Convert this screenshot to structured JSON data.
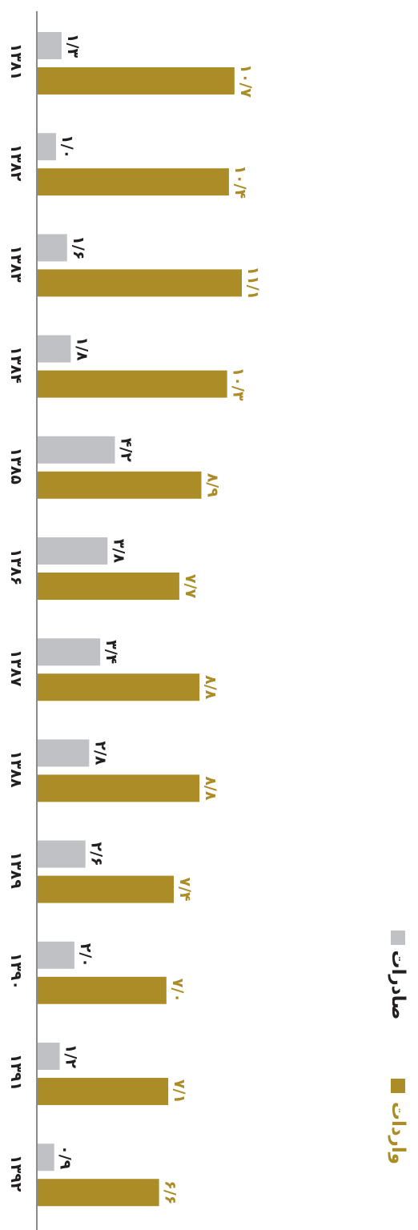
{
  "chart_data": {
    "type": "bar",
    "orientation": "horizontal",
    "categories": [
      "۱۳۸۱",
      "۱۳۸۲",
      "۱۳۸۳",
      "۱۳۸۴",
      "۱۳۸۵",
      "۱۳۸۶",
      "۱۳۸۷",
      "۱۳۸۸",
      "۱۳۸۹",
      "۱۳۹۰",
      "۱۳۹۱",
      "۱۳۹۲"
    ],
    "series": [
      {
        "name": "صادرات",
        "color": "#c0c1c4",
        "label_color": "#231f20",
        "values": [
          1.3,
          1.0,
          1.6,
          1.8,
          4.2,
          3.8,
          3.4,
          2.8,
          2.6,
          2.0,
          1.2,
          0.9
        ],
        "value_labels": [
          "۱/۳",
          "۱/۰",
          "۱/۶",
          "۱/۸",
          "۴/۲",
          "۳/۸",
          "۳/۴",
          "۲/۸",
          "۲/۶",
          "۲/۰",
          "۱/۲",
          "۰/۹"
        ]
      },
      {
        "name": "واردات",
        "color": "#ab8c26",
        "label_color": "#ab8c26",
        "values": [
          10.7,
          10.4,
          11.1,
          10.3,
          8.9,
          7.7,
          8.8,
          8.8,
          7.4,
          7.0,
          7.1,
          6.6
        ],
        "value_labels": [
          "۱۰/۷",
          "۱۰/۴",
          "۱۱/۱",
          "۱۰/۳",
          "۸/۹",
          "۷/۷",
          "۸/۸",
          "۸/۸",
          "۷/۴",
          "۷/۰",
          "۷/۱",
          "۶/۶"
        ]
      }
    ],
    "title": "",
    "xlabel": "",
    "ylabel": "",
    "xlim": [
      0,
      12
    ],
    "grid": false,
    "legend": {
      "placement": "bottom-right"
    },
    "axis_color": "#8a8a8a"
  }
}
